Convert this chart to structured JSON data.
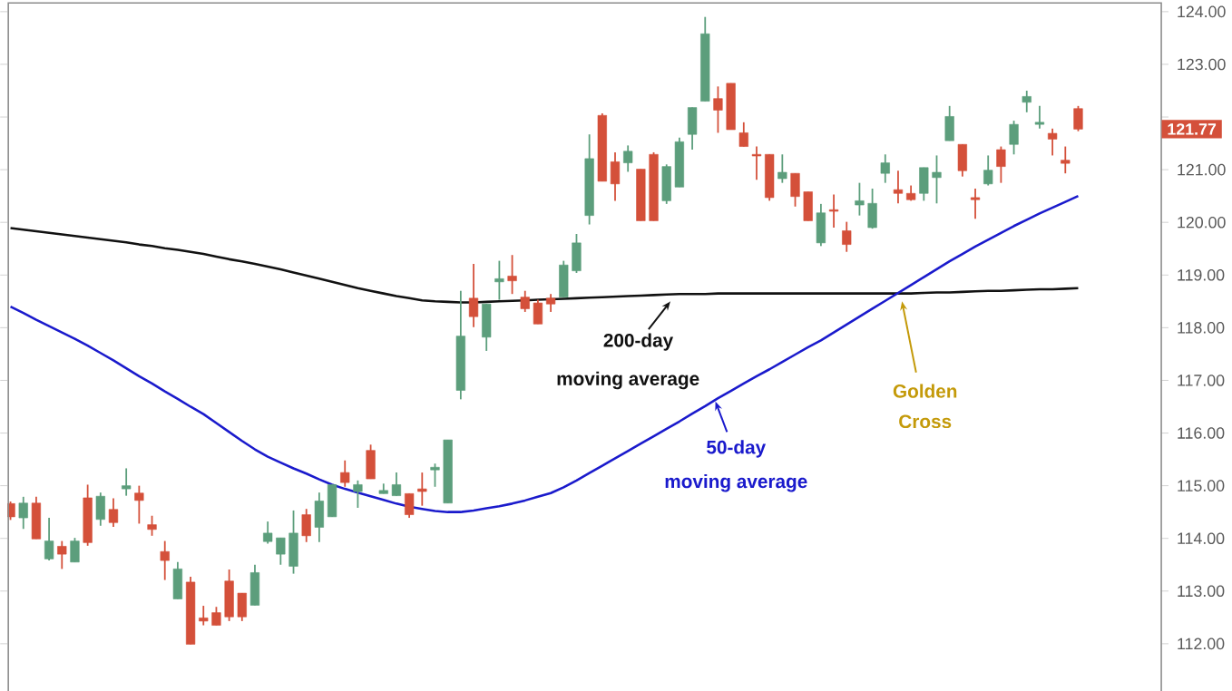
{
  "chart_data": {
    "type": "candlestick",
    "tick_labels": "y",
    "categories": [
      null,
      null,
      null,
      null,
      null,
      null,
      null,
      null,
      null,
      null,
      null,
      null,
      null,
      null,
      null,
      null,
      null,
      null,
      null,
      null,
      null,
      null,
      null,
      null,
      null,
      null,
      null,
      null,
      null,
      null,
      null,
      null,
      null,
      null,
      null,
      null,
      null,
      null,
      null,
      null,
      null,
      null,
      null,
      null,
      null,
      null,
      null,
      null,
      null,
      null,
      null,
      null,
      null,
      null,
      null,
      null,
      null,
      null,
      null,
      null,
      null,
      null,
      null,
      null,
      null,
      null,
      null,
      null,
      null,
      null,
      null,
      null,
      null,
      null,
      null,
      null,
      null,
      null,
      null,
      null,
      null,
      null,
      null,
      null
    ],
    "ohlc": [
      [
        114.66,
        114.7,
        114.35,
        114.41
      ],
      [
        114.39,
        114.79,
        114.18,
        114.67
      ],
      [
        114.67,
        114.79,
        113.99,
        113.99
      ],
      [
        113.61,
        114.39,
        113.58,
        113.95
      ],
      [
        113.85,
        113.95,
        113.42,
        113.7
      ],
      [
        113.55,
        114.01,
        113.55,
        113.95
      ],
      [
        114.77,
        115.02,
        113.86,
        113.92
      ],
      [
        114.36,
        114.87,
        114.24,
        114.8
      ],
      [
        114.55,
        114.76,
        114.22,
        114.3
      ],
      [
        114.94,
        115.33,
        114.81,
        115.0
      ],
      [
        114.86,
        115.0,
        114.28,
        114.72
      ],
      [
        114.26,
        114.43,
        114.05,
        114.17
      ],
      [
        113.75,
        113.95,
        113.21,
        113.58
      ],
      [
        112.85,
        113.55,
        112.85,
        113.42
      ],
      [
        113.17,
        113.27,
        111.99,
        111.99
      ],
      [
        112.49,
        112.72,
        112.35,
        112.43
      ],
      [
        112.59,
        112.7,
        112.35,
        112.35
      ],
      [
        113.19,
        113.41,
        112.43,
        112.51
      ],
      [
        112.96,
        112.96,
        112.43,
        112.51
      ],
      [
        112.73,
        113.5,
        112.73,
        113.35
      ],
      [
        113.94,
        114.32,
        113.9,
        114.1
      ],
      [
        113.7,
        114.01,
        113.5,
        114.01
      ],
      [
        113.47,
        114.53,
        113.33,
        114.1
      ],
      [
        114.45,
        114.56,
        113.93,
        114.05
      ],
      [
        114.21,
        114.87,
        113.93,
        114.71
      ],
      [
        114.41,
        115.02,
        114.41,
        115.02
      ],
      [
        115.25,
        115.48,
        114.98,
        115.06
      ],
      [
        114.89,
        115.1,
        114.58,
        115.02
      ],
      [
        115.67,
        115.78,
        115.13,
        115.13
      ],
      [
        114.85,
        115.04,
        114.85,
        114.91
      ],
      [
        114.81,
        115.25,
        114.81,
        115.02
      ],
      [
        114.85,
        114.85,
        114.39,
        114.45
      ],
      [
        114.94,
        115.25,
        114.62,
        114.89
      ],
      [
        115.3,
        115.42,
        114.98,
        115.35
      ],
      [
        114.67,
        115.87,
        114.67,
        115.87
      ],
      [
        116.81,
        118.7,
        116.64,
        117.84
      ],
      [
        118.56,
        119.21,
        118.01,
        118.21
      ],
      [
        117.82,
        118.45,
        117.56,
        118.45
      ],
      [
        118.87,
        119.27,
        118.53,
        118.93
      ],
      [
        118.98,
        119.38,
        118.64,
        118.89
      ],
      [
        118.58,
        118.7,
        118.3,
        118.36
      ],
      [
        118.47,
        118.53,
        118.07,
        118.07
      ],
      [
        118.56,
        118.64,
        118.3,
        118.45
      ],
      [
        118.58,
        119.27,
        118.58,
        119.19
      ],
      [
        119.08,
        119.78,
        119.04,
        119.61
      ],
      [
        120.13,
        121.67,
        119.96,
        121.21
      ],
      [
        122.03,
        122.07,
        120.78,
        120.78
      ],
      [
        121.15,
        121.33,
        120.41,
        120.73
      ],
      [
        121.13,
        121.46,
        120.96,
        121.35
      ],
      [
        121.01,
        121.01,
        120.03,
        120.03
      ],
      [
        121.29,
        121.33,
        120.03,
        120.03
      ],
      [
        120.41,
        121.1,
        120.35,
        121.06
      ],
      [
        120.67,
        121.61,
        120.67,
        121.53
      ],
      [
        121.67,
        122.18,
        121.38,
        122.18
      ],
      [
        122.3,
        123.9,
        122.3,
        123.58
      ],
      [
        122.35,
        122.58,
        121.7,
        122.13
      ],
      [
        122.64,
        122.64,
        121.76,
        121.76
      ],
      [
        121.7,
        121.9,
        121.44,
        121.44
      ],
      [
        121.29,
        121.44,
        120.81,
        121.26
      ],
      [
        121.29,
        121.29,
        120.41,
        120.47
      ],
      [
        120.83,
        121.29,
        120.75,
        120.95
      ],
      [
        120.93,
        120.93,
        120.3,
        120.49
      ],
      [
        120.58,
        120.58,
        120.03,
        120.03
      ],
      [
        119.61,
        120.35,
        119.55,
        120.18
      ],
      [
        120.24,
        120.53,
        119.9,
        120.21
      ],
      [
        119.84,
        120.01,
        119.44,
        119.58
      ],
      [
        120.33,
        120.75,
        120.13,
        120.41
      ],
      [
        119.9,
        120.64,
        119.88,
        120.36
      ],
      [
        120.93,
        121.29,
        120.75,
        121.13
      ],
      [
        120.62,
        120.98,
        120.36,
        120.55
      ],
      [
        120.55,
        120.7,
        120.41,
        120.43
      ],
      [
        120.55,
        121.04,
        120.41,
        121.04
      ],
      [
        120.85,
        121.27,
        120.36,
        120.95
      ],
      [
        121.55,
        122.21,
        121.55,
        122.01
      ],
      [
        121.48,
        121.48,
        120.87,
        120.98
      ],
      [
        120.47,
        120.64,
        120.07,
        120.43
      ],
      [
        120.73,
        121.27,
        120.7,
        120.99
      ],
      [
        121.38,
        121.44,
        120.75,
        121.06
      ],
      [
        121.48,
        121.93,
        121.29,
        121.86
      ],
      [
        122.28,
        122.5,
        122.09,
        122.39
      ],
      [
        121.86,
        122.21,
        121.78,
        121.9
      ],
      [
        121.69,
        121.78,
        121.27,
        121.58
      ],
      [
        121.18,
        121.44,
        120.93,
        121.12
      ],
      [
        122.16,
        122.21,
        121.73,
        121.77
      ]
    ],
    "colors": [
      "#d4503a",
      "#5c9e7c",
      "#d4503a",
      "#5c9e7c",
      "#d4503a",
      "#5c9e7c",
      "#d4503a",
      "#5c9e7c",
      "#d4503a",
      "#5c9e7c",
      "#d4503a",
      "#d4503a",
      "#d4503a",
      "#5c9e7c",
      "#d4503a",
      "#d4503a",
      "#d4503a",
      "#d4503a",
      "#d4503a",
      "#5c9e7c",
      "#5c9e7c",
      "#5c9e7c",
      "#5c9e7c",
      "#d4503a",
      "#5c9e7c",
      "#5c9e7c",
      "#d4503a",
      "#5c9e7c",
      "#d4503a",
      "#5c9e7c",
      "#5c9e7c",
      "#d4503a",
      "#d4503a",
      "#5c9e7c",
      "#5c9e7c",
      "#5c9e7c",
      "#d4503a",
      "#5c9e7c",
      "#5c9e7c",
      "#d4503a",
      "#d4503a",
      "#d4503a",
      "#d4503a",
      "#5c9e7c",
      "#5c9e7c",
      "#5c9e7c",
      "#d4503a",
      "#d4503a",
      "#5c9e7c",
      "#d4503a",
      "#d4503a",
      "#5c9e7c",
      "#5c9e7c",
      "#5c9e7c",
      "#5c9e7c",
      "#d4503a",
      "#d4503a",
      "#d4503a",
      "#d4503a",
      "#d4503a",
      "#5c9e7c",
      "#d4503a",
      "#d4503a",
      "#5c9e7c",
      "#d4503a",
      "#d4503a",
      "#5c9e7c",
      "#5c9e7c",
      "#5c9e7c",
      "#d4503a",
      "#d4503a",
      "#5c9e7c",
      "#5c9e7c",
      "#5c9e7c",
      "#d4503a",
      "#d4503a",
      "#5c9e7c",
      "#d4503a",
      "#5c9e7c",
      "#5c9e7c",
      "#5c9e7c",
      "#d4503a",
      "#d4503a",
      "#d4503a"
    ],
    "series": [
      {
        "type": "line",
        "color": "#111111",
        "values": [
          119.89,
          119.86,
          119.83,
          119.8,
          119.77,
          119.74,
          119.71,
          119.68,
          119.65,
          119.62,
          119.58,
          119.55,
          119.51,
          119.48,
          119.44,
          119.4,
          119.35,
          119.3,
          119.26,
          119.21,
          119.16,
          119.11,
          119.05,
          118.99,
          118.93,
          118.87,
          118.81,
          118.75,
          118.7,
          118.65,
          118.6,
          118.56,
          118.52,
          118.5,
          118.49,
          118.48,
          118.48,
          118.49,
          118.5,
          118.51,
          118.52,
          118.53,
          118.54,
          118.55,
          118.56,
          118.57,
          118.58,
          118.59,
          118.6,
          118.61,
          118.62,
          118.63,
          118.64,
          118.64,
          118.64,
          118.65,
          118.65,
          118.65,
          118.65,
          118.65,
          118.65,
          118.65,
          118.65,
          118.65,
          118.65,
          118.65,
          118.65,
          118.65,
          118.65,
          118.65,
          118.65,
          118.66,
          118.67,
          118.67,
          118.68,
          118.69,
          118.7,
          118.7,
          118.71,
          118.72,
          118.73,
          118.73,
          118.74,
          118.75
        ]
      },
      {
        "type": "line",
        "color": "#1a1acc",
        "values": [
          118.4,
          118.28,
          118.15,
          118.03,
          117.91,
          117.79,
          117.66,
          117.52,
          117.38,
          117.23,
          117.08,
          116.94,
          116.79,
          116.65,
          116.5,
          116.36,
          116.19,
          116.02,
          115.85,
          115.69,
          115.55,
          115.44,
          115.33,
          115.23,
          115.12,
          115.02,
          114.94,
          114.87,
          114.8,
          114.73,
          114.66,
          114.6,
          114.56,
          114.52,
          114.5,
          114.5,
          114.53,
          114.57,
          114.61,
          114.66,
          114.72,
          114.79,
          114.86,
          114.97,
          115.1,
          115.24,
          115.38,
          115.52,
          115.66,
          115.8,
          115.94,
          116.08,
          116.22,
          116.37,
          116.51,
          116.66,
          116.8,
          116.94,
          117.08,
          117.21,
          117.35,
          117.49,
          117.63,
          117.76,
          117.91,
          118.06,
          118.21,
          118.36,
          118.51,
          118.66,
          118.81,
          118.96,
          119.11,
          119.26,
          119.4,
          119.54,
          119.67,
          119.8,
          119.93,
          120.05,
          120.17,
          120.28,
          120.39,
          120.5
        ]
      }
    ],
    "ylim": [
      111.1,
      124.15
    ],
    "yticks": [
      {
        "value": 112,
        "label": "112.00"
      },
      {
        "value": 113,
        "label": "113.00"
      },
      {
        "value": 114,
        "label": "114.00"
      },
      {
        "value": 115,
        "label": "115.00"
      },
      {
        "value": 116,
        "label": "116.00"
      },
      {
        "value": 117,
        "label": "117.00"
      },
      {
        "value": 118,
        "label": "118.00"
      },
      {
        "value": 119,
        "label": "119.00"
      },
      {
        "value": 120,
        "label": "120.00"
      },
      {
        "value": 121,
        "label": "121.00"
      },
      {
        "value": 122,
        "label": null
      },
      {
        "value": 123,
        "label": "123.00"
      },
      {
        "value": 124,
        "label": "124.00"
      }
    ],
    "annotations": [
      "200-day",
      "moving average",
      "50-day",
      "moving average",
      "Golden",
      "Cross",
      "121.77"
    ]
  }
}
